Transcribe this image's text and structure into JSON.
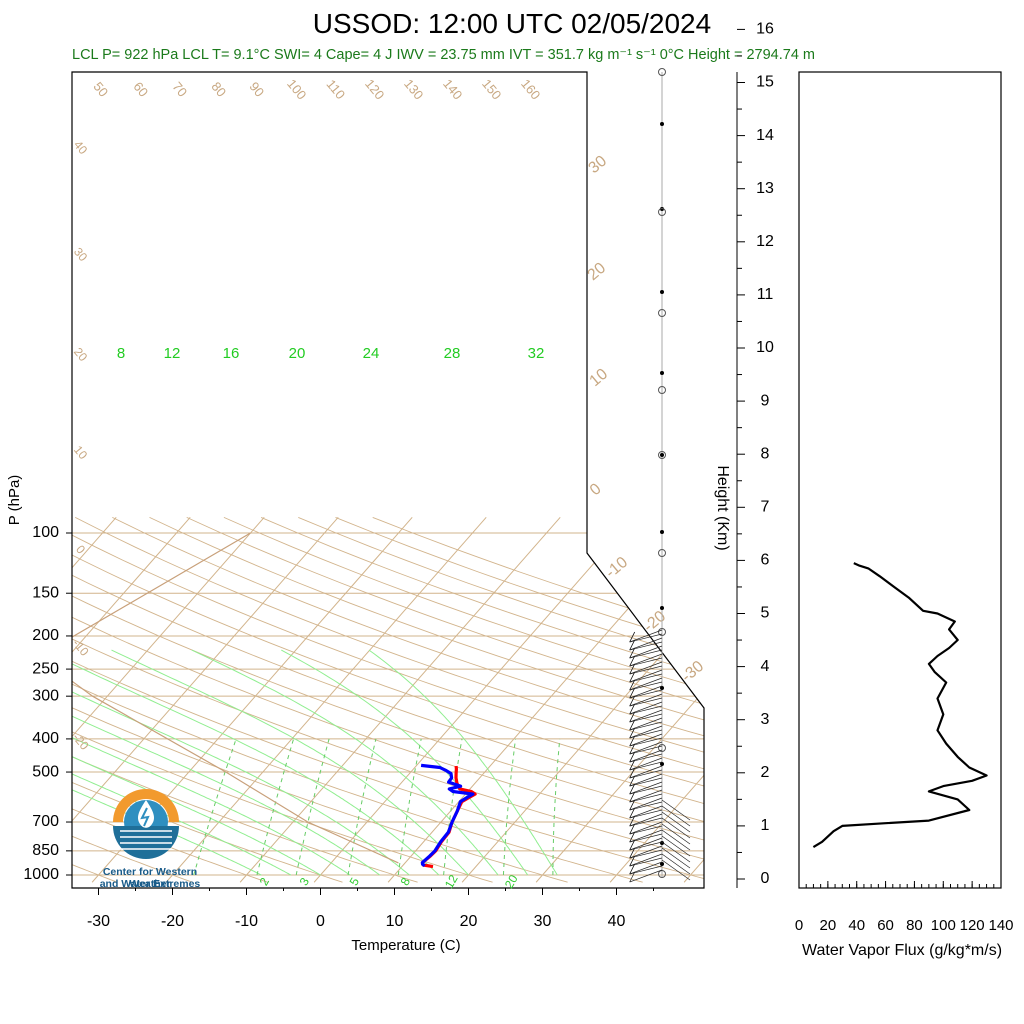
{
  "header": {
    "title": "USSOD: 12:00 UTC 02/05/2024",
    "subtitle": "LCL P= 922 hPa  LCL T= 9.1°C  SWI= 4  Cape= 4 J  IWV = 23.75 mm  IVT = 351.7 kg m⁻¹ s⁻¹  0°C Height = 2794.74 m"
  },
  "logo": {
    "line1": "Center for Western Weather",
    "line2": "and Water Extremes"
  },
  "colors": {
    "temperature": "#ff0000",
    "dewpoint": "#0000ff",
    "dry_adiabat": "#d2b48c",
    "moist_adiabat": "#90ee90",
    "mixing_ratio": "#66cc66",
    "text_green": "#1b7a1b",
    "skewt_label": "#c8a882"
  },
  "chart_data": [
    {
      "type": "skewt",
      "xlabel": "Temperature (C)",
      "ylabel": "P (hPa)",
      "y2label": "Height (Km)",
      "x_ticks": [
        -30,
        -20,
        -10,
        0,
        10,
        20,
        30,
        40
      ],
      "p_ticks": [
        100,
        150,
        200,
        250,
        300,
        400,
        500,
        700,
        850,
        1000
      ],
      "height_ticks": [
        0,
        1,
        2,
        3,
        4,
        5,
        6,
        7,
        8,
        9,
        10,
        11,
        12,
        13,
        14,
        15,
        16
      ],
      "skewed_isotherm_labels": [
        30,
        20,
        10,
        0,
        -10,
        -20,
        -30
      ],
      "theta_labels": [
        50,
        60,
        70,
        80,
        90,
        100,
        110,
        120,
        130,
        140,
        150,
        160
      ],
      "theta_side_labels": [
        40,
        30,
        20,
        10,
        0,
        -10,
        -20
      ],
      "moist_labels": [
        8,
        12,
        16,
        20,
        24,
        28,
        32
      ],
      "mixing_ratio_labels": [
        2,
        3,
        5,
        8,
        12,
        20
      ],
      "temperature": {
        "name": "Temperature",
        "points": [
          [
            945,
            14.2
          ],
          [
            935,
            12.7
          ],
          [
            920,
            12.3
          ],
          [
            880,
            12.6
          ],
          [
            850,
            12.7
          ],
          [
            800,
            12.4
          ],
          [
            750,
            12.3
          ],
          [
            700,
            11.5
          ],
          [
            650,
            10.9
          ],
          [
            610,
            10.4
          ],
          [
            590,
            11.0
          ],
          [
            580,
            11.3
          ],
          [
            570,
            10.5
          ],
          [
            560,
            8.6
          ],
          [
            540,
            7.6
          ],
          [
            520,
            6.8
          ],
          [
            505,
            6.3
          ],
          [
            490,
            5.8
          ],
          [
            480,
            5.4
          ]
        ]
      },
      "dewpoint": {
        "name": "Dewpoint",
        "points": [
          [
            940,
            13.0
          ],
          [
            930,
            12.5
          ],
          [
            920,
            12.3
          ],
          [
            880,
            12.5
          ],
          [
            850,
            12.6
          ],
          [
            800,
            12.3
          ],
          [
            750,
            12.2
          ],
          [
            700,
            11.5
          ],
          [
            650,
            10.9
          ],
          [
            610,
            10.2
          ],
          [
            590,
            10.7
          ],
          [
            580,
            11.0
          ],
          [
            570,
            8.0
          ],
          [
            560,
            7.2
          ],
          [
            550,
            8.4
          ],
          [
            535,
            6.3
          ],
          [
            520,
            6.2
          ],
          [
            505,
            5.6
          ],
          [
            495,
            4.6
          ],
          [
            485,
            3.4
          ],
          [
            478,
            0.6
          ]
        ]
      }
    },
    {
      "type": "line",
      "xlabel": "Water Vapor Flux (g/kg*m/s)",
      "x_ticks": [
        0,
        20,
        40,
        60,
        80,
        100,
        120,
        140
      ],
      "xlim": [
        0,
        140
      ],
      "ylim": [
        0,
        16.5
      ],
      "series": [
        {
          "points": [
            [
              10,
              0.6
            ],
            [
              16,
              0.7
            ],
            [
              24,
              0.9
            ],
            [
              30,
              1.0
            ],
            [
              60,
              1.05
            ],
            [
              90,
              1.1
            ],
            [
              118,
              1.3
            ],
            [
              110,
              1.5
            ],
            [
              90,
              1.65
            ],
            [
              100,
              1.75
            ],
            [
              120,
              1.85
            ],
            [
              130,
              1.95
            ],
            [
              118,
              2.1
            ],
            [
              110,
              2.3
            ],
            [
              102,
              2.55
            ],
            [
              96,
              2.8
            ],
            [
              100,
              3.1
            ],
            [
              96,
              3.4
            ],
            [
              102,
              3.7
            ],
            [
              94,
              3.9
            ],
            [
              90,
              4.05
            ],
            [
              96,
              4.2
            ],
            [
              104,
              4.35
            ],
            [
              110,
              4.5
            ],
            [
              104,
              4.7
            ],
            [
              108,
              4.85
            ],
            [
              96,
              5.0
            ],
            [
              86,
              5.05
            ],
            [
              76,
              5.3
            ],
            [
              66,
              5.5
            ],
            [
              56,
              5.7
            ],
            [
              48,
              5.85
            ],
            [
              42,
              5.9
            ],
            [
              38,
              5.95
            ]
          ]
        }
      ]
    }
  ]
}
